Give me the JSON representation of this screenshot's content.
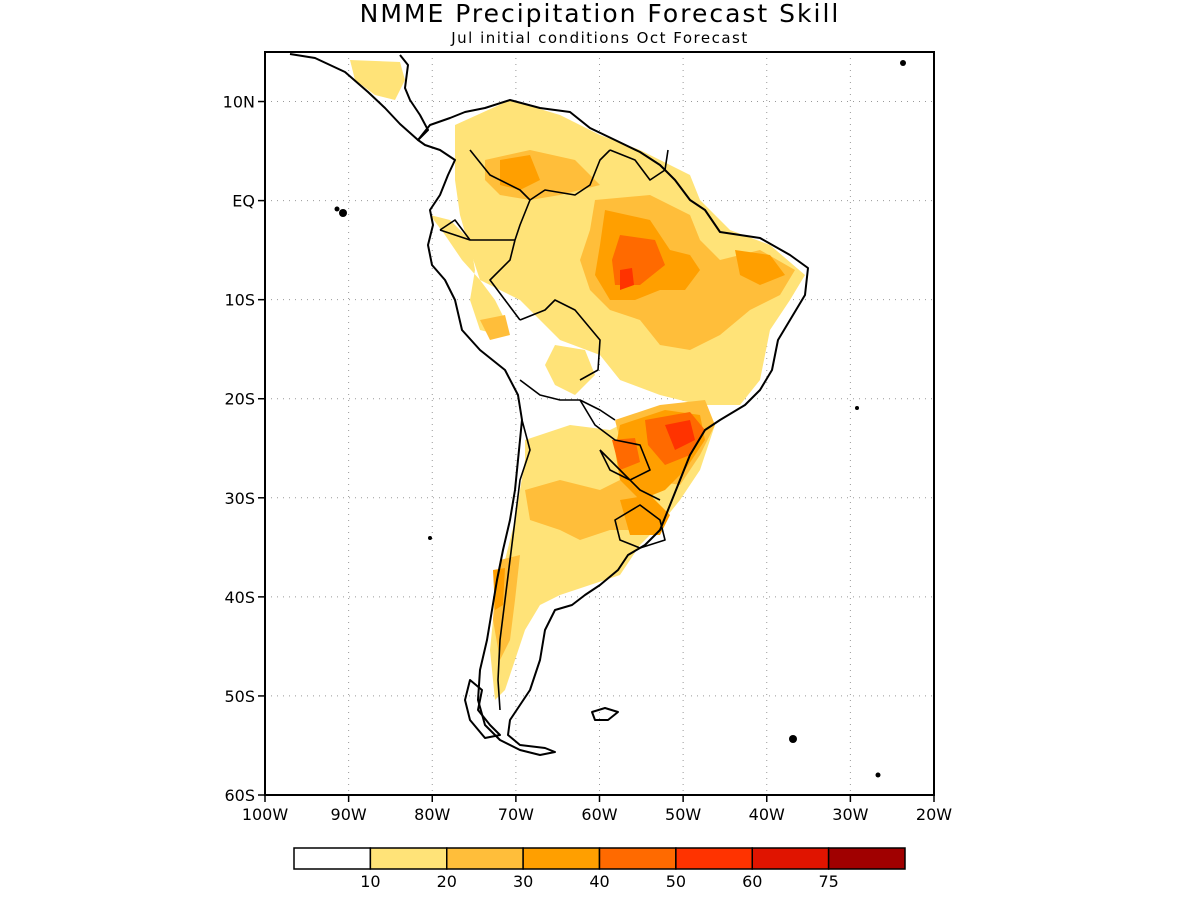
{
  "title": "NMME Precipitation Forecast Skill",
  "subtitle": "Jul initial conditions  Oct Forecast",
  "map": {
    "lon_range": [
      -100,
      -20
    ],
    "lat_range": [
      -60,
      15
    ],
    "y_ticks": [
      {
        "lat": 10,
        "label": "10N"
      },
      {
        "lat": 0,
        "label": "EQ"
      },
      {
        "lat": -10,
        "label": "10S"
      },
      {
        "lat": -20,
        "label": "20S"
      },
      {
        "lat": -30,
        "label": "30S"
      },
      {
        "lat": -40,
        "label": "40S"
      },
      {
        "lat": -50,
        "label": "50S"
      },
      {
        "lat": -60,
        "label": "60S"
      }
    ],
    "x_ticks": [
      {
        "lon": -100,
        "label": "100W"
      },
      {
        "lon": -90,
        "label": "90W"
      },
      {
        "lon": -80,
        "label": "80W"
      },
      {
        "lon": -70,
        "label": "70W"
      },
      {
        "lon": -60,
        "label": "60W"
      },
      {
        "lon": -50,
        "label": "50W"
      },
      {
        "lon": -40,
        "label": "40W"
      },
      {
        "lon": -30,
        "label": "30W"
      },
      {
        "lon": -20,
        "label": "20W"
      }
    ],
    "grid": true
  },
  "colorbar": {
    "colors": [
      "#ffffff",
      "#ffe378",
      "#ffbe3a",
      "#ff9f00",
      "#ff6a00",
      "#ff3300",
      "#e01400",
      "#a00000"
    ],
    "labels": [
      "10",
      "20",
      "30",
      "40",
      "50",
      "60",
      "75"
    ]
  }
}
